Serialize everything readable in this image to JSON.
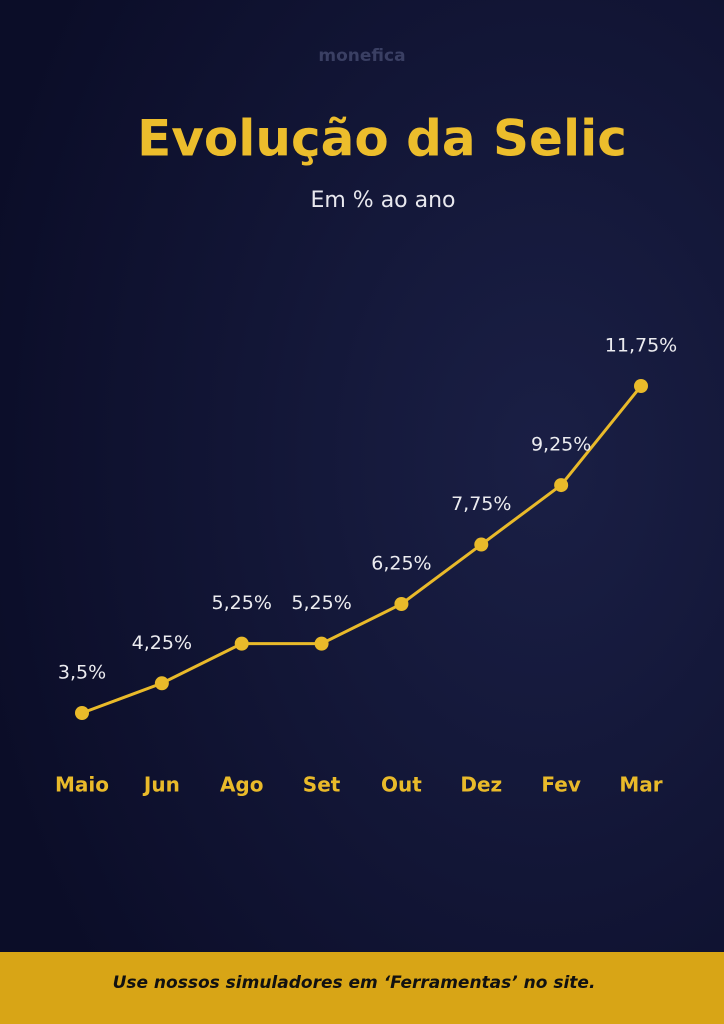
{
  "brand": "monefica",
  "chart_data": {
    "type": "line",
    "title": "Evolução da Selic",
    "subtitle": "Em % ao ano",
    "categories": [
      "Maio",
      "Jun",
      "Ago",
      "Set",
      "Out",
      "Dez",
      "Fev",
      "Mar"
    ],
    "values": [
      3.5,
      4.25,
      5.25,
      5.25,
      6.25,
      7.75,
      9.25,
      11.75
    ],
    "value_labels": [
      "3,5%",
      "4,25%",
      "5,25%",
      "5,25%",
      "6,25%",
      "7,75%",
      "9,25%",
      "11,75%"
    ],
    "color": "#e9ba2a"
  },
  "footer": "Use nossos simuladores em ‘Ferramentas’ no site."
}
